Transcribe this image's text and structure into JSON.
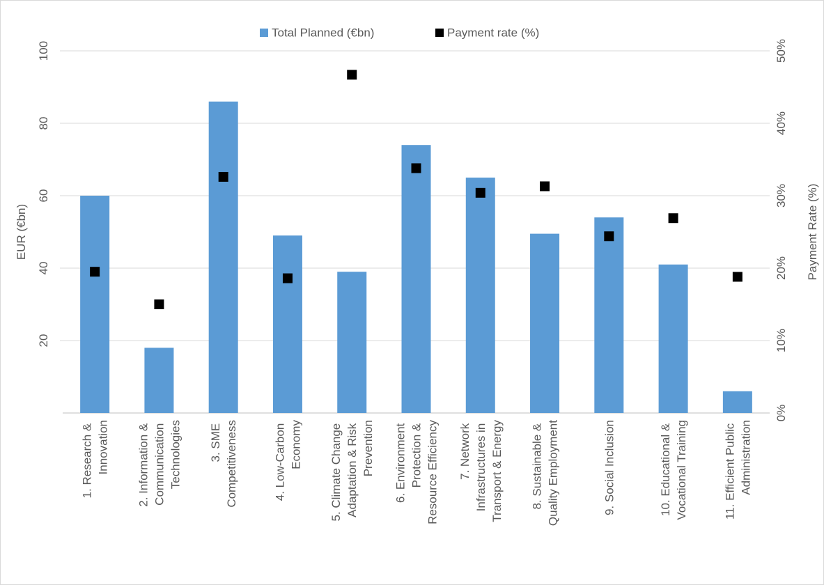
{
  "chart_data": {
    "type": "bar_scatter",
    "categories": [
      "1. Research &\nInnovation",
      "2. Information &\nCommunication\nTechnologies",
      "3. SME\nCompetitiveness",
      "4. Low-Carbon\nEconomy",
      "5. Climate Change\nAdaptation & Risk\nPrevention",
      "6. Environment\nProtection &\nResource Efficiency",
      "7. Network\nInfrastructures in\nTransport & Energy",
      "8. Sustainable &\nQuality Employment",
      "9. Social Inclusion",
      "10. Educational &\nVocational Training",
      "11. Efficient Public\nAdministration"
    ],
    "series": [
      {
        "name": "Total Planned (€bn)",
        "color": "#5b9bd5",
        "values": [
          60,
          18,
          86,
          49,
          39,
          74,
          65,
          49.5,
          54,
          41,
          6
        ]
      },
      {
        "name": "Payment rate (%)",
        "color": "#000000",
        "axis": "y2",
        "values": [
          19.5,
          15,
          32.6,
          18.6,
          46.7,
          33.8,
          30.4,
          31.3,
          24.4,
          26.9,
          18.8
        ]
      }
    ],
    "ylabel": "EUR (€bn)",
    "y2label": "Payment Rate (%)",
    "ylim": [
      0,
      100
    ],
    "yticks": [
      20,
      40,
      60,
      80,
      100
    ],
    "y2lim": [
      0,
      50
    ],
    "y2ticks": [
      {
        "value": 0,
        "label": "0%"
      },
      {
        "value": 10,
        "label": "10%"
      },
      {
        "value": 20,
        "label": "20%"
      },
      {
        "value": 30,
        "label": "30%"
      },
      {
        "value": 40,
        "label": "40%"
      },
      {
        "value": 50,
        "label": "50%"
      }
    ],
    "grid": true,
    "legend": "top"
  }
}
